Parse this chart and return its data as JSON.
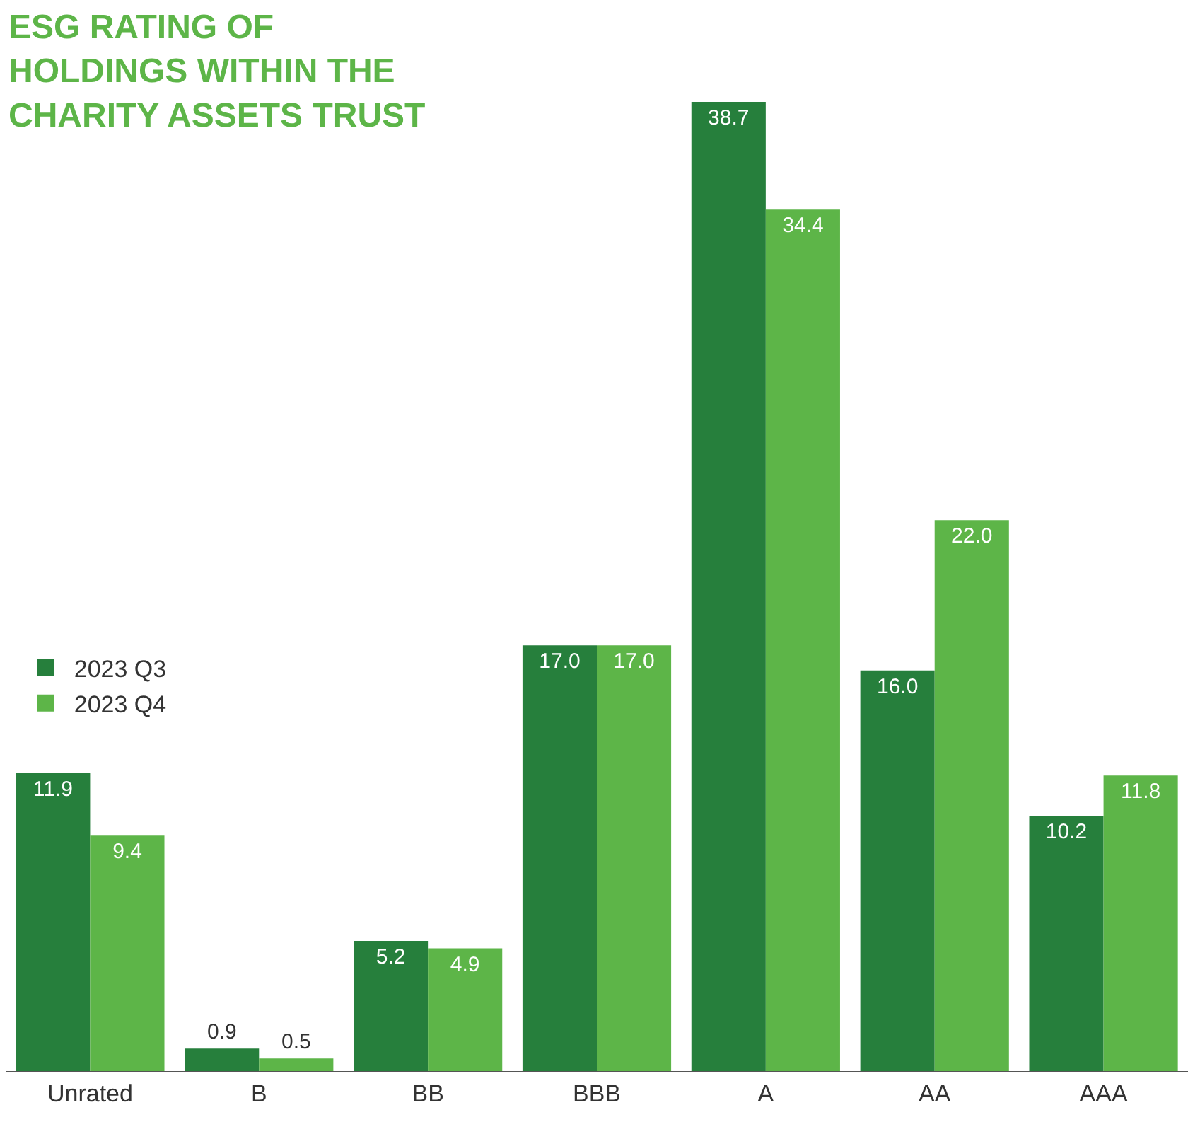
{
  "chart_data": {
    "type": "bar",
    "title": "ESG RATING OF\nHOLDINGS WITHIN THE\nCHARITY ASSETS TRUST",
    "categories": [
      "Unrated",
      "B",
      "BB",
      "BBB",
      "A",
      "AA",
      "AAA"
    ],
    "series": [
      {
        "name": "2023 Q3",
        "color": "#267f3c",
        "values": [
          11.9,
          0.9,
          5.2,
          17.0,
          38.7,
          16.0,
          10.2
        ],
        "value_labels": [
          "11.9",
          "0.9",
          "5.2",
          "17.0",
          "38.7",
          "16.0",
          "10.2"
        ]
      },
      {
        "name": "2023 Q4",
        "color": "#5db548",
        "values": [
          9.4,
          0.5,
          4.9,
          17.0,
          34.4,
          22.0,
          11.8
        ],
        "value_labels": [
          "9.4",
          "0.5",
          "4.9",
          "17.0",
          "34.4",
          "22.0",
          "11.8"
        ]
      }
    ],
    "legend": "left",
    "grid": false,
    "tick_labels": "x"
  }
}
